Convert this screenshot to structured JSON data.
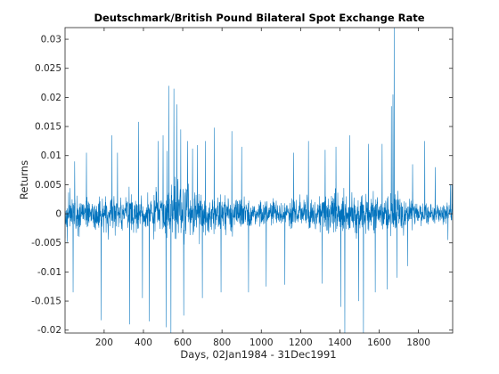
{
  "chart_data": {
    "type": "line",
    "title": "Deutschmark/British Pound Bilateral Spot Exchange Rate",
    "xlabel": "Days, 02Jan1984 - 31Dec1991",
    "ylabel": "Returns",
    "xlim": [
      1,
      1974
    ],
    "ylim": [
      -0.0205,
      0.032
    ],
    "xticks": [
      200,
      400,
      600,
      800,
      1000,
      1200,
      1400,
      1600,
      1800
    ],
    "xtick_labels": [
      "200",
      "400",
      "600",
      "800",
      "1000",
      "1200",
      "1400",
      "1600",
      "1800"
    ],
    "yticks": [
      -0.02,
      -0.015,
      -0.01,
      -0.005,
      0,
      0.005,
      0.01,
      0.015,
      0.02,
      0.025,
      0.03
    ],
    "ytick_labels": [
      "-0.02",
      "-0.015",
      "-0.01",
      "-0.005",
      "0",
      "0.005",
      "0.01",
      "0.015",
      "0.02",
      "0.025",
      "0.03"
    ],
    "grid": false,
    "series": [
      {
        "color": "#0072bd",
        "n_points": 1974,
        "volatility_profile": [
          [
            1,
            0.004
          ],
          [
            60,
            0.0032
          ],
          [
            120,
            0.0032
          ],
          [
            200,
            0.0036
          ],
          [
            300,
            0.0034
          ],
          [
            400,
            0.0031
          ],
          [
            450,
            0.0036
          ],
          [
            500,
            0.0045
          ],
          [
            550,
            0.0058
          ],
          [
            600,
            0.0055
          ],
          [
            650,
            0.0045
          ],
          [
            700,
            0.0038
          ],
          [
            760,
            0.0032
          ],
          [
            800,
            0.0034
          ],
          [
            900,
            0.0028
          ],
          [
            1000,
            0.0022
          ],
          [
            1050,
            0.0023
          ],
          [
            1100,
            0.0026
          ],
          [
            1200,
            0.0028
          ],
          [
            1300,
            0.003
          ],
          [
            1350,
            0.0034
          ],
          [
            1400,
            0.0042
          ],
          [
            1450,
            0.0044
          ],
          [
            1500,
            0.0042
          ],
          [
            1550,
            0.0036
          ],
          [
            1600,
            0.0032
          ],
          [
            1650,
            0.0033
          ],
          [
            1700,
            0.0034
          ],
          [
            1750,
            0.0026
          ],
          [
            1800,
            0.0022
          ],
          [
            1900,
            0.0018
          ],
          [
            1974,
            0.0018
          ]
        ],
        "notable_points": [
          [
            42,
            -0.0135
          ],
          [
            50,
            0.009
          ],
          [
            110,
            0.0105
          ],
          [
            185,
            -0.0183
          ],
          [
            240,
            0.0135
          ],
          [
            268,
            0.0105
          ],
          [
            330,
            -0.019
          ],
          [
            375,
            0.0158
          ],
          [
            395,
            -0.0145
          ],
          [
            430,
            -0.0185
          ],
          [
            475,
            0.0125
          ],
          [
            500,
            0.0135
          ],
          [
            515,
            -0.0195
          ],
          [
            520,
            0.0108
          ],
          [
            530,
            0.022
          ],
          [
            540,
            -0.0205
          ],
          [
            555,
            0.0215
          ],
          [
            570,
            0.0188
          ],
          [
            590,
            0.0145
          ],
          [
            605,
            -0.0175
          ],
          [
            625,
            0.0125
          ],
          [
            650,
            0.0112
          ],
          [
            675,
            0.0118
          ],
          [
            700,
            -0.0145
          ],
          [
            715,
            0.0125
          ],
          [
            760,
            0.0148
          ],
          [
            795,
            -0.0135
          ],
          [
            850,
            0.0142
          ],
          [
            900,
            0.0115
          ],
          [
            935,
            -0.0135
          ],
          [
            1025,
            -0.0125
          ],
          [
            1120,
            -0.0122
          ],
          [
            1165,
            0.0105
          ],
          [
            1240,
            0.0125
          ],
          [
            1310,
            -0.012
          ],
          [
            1325,
            0.011
          ],
          [
            1380,
            0.0115
          ],
          [
            1405,
            -0.016
          ],
          [
            1425,
            -0.0205
          ],
          [
            1450,
            0.0135
          ],
          [
            1495,
            -0.015
          ],
          [
            1520,
            -0.0205
          ],
          [
            1545,
            0.012
          ],
          [
            1580,
            -0.0135
          ],
          [
            1615,
            0.012
          ],
          [
            1640,
            -0.013
          ],
          [
            1662,
            0.0185
          ],
          [
            1670,
            0.0205
          ],
          [
            1676,
            0.032
          ],
          [
            1690,
            -0.011
          ],
          [
            1745,
            -0.009
          ],
          [
            1770,
            0.0085
          ],
          [
            1832,
            0.0125
          ],
          [
            1885,
            0.008
          ],
          [
            1950,
            -0.0045
          ],
          [
            1962,
            0.005
          ],
          [
            1970,
            0.005
          ]
        ]
      }
    ]
  }
}
